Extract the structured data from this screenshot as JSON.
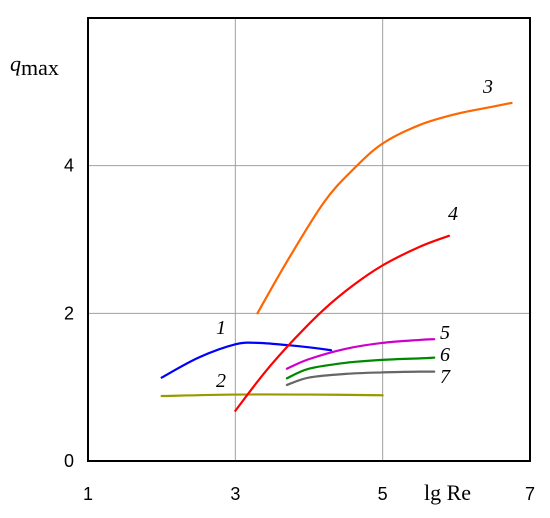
{
  "chart_data": {
    "type": "line",
    "xlabel": "lg Re",
    "ylabel": {
      "symbol": "q",
      "subscript": "max"
    },
    "xlim": [
      1,
      7
    ],
    "ylim": [
      0,
      6
    ],
    "x_ticks": [
      "1",
      "3",
      "5",
      "7"
    ],
    "y_ticks": [
      "0",
      "2",
      "4"
    ],
    "x_grid": [
      3,
      5
    ],
    "y_grid": [
      2,
      4
    ],
    "grid": true,
    "series": [
      {
        "name": "1",
        "color": "#0000ff",
        "x": [
          2.0,
          2.5,
          3.0,
          3.3,
          3.7,
          4.0,
          4.3
        ],
        "y": [
          1.13,
          1.4,
          1.58,
          1.6,
          1.57,
          1.54,
          1.5
        ]
      },
      {
        "name": "2",
        "color": "#999900",
        "x": [
          2.0,
          3.0,
          4.0,
          5.0
        ],
        "y": [
          0.88,
          0.9,
          0.9,
          0.89
        ]
      },
      {
        "name": "3",
        "color": "#ff6600",
        "x": [
          3.3,
          3.7,
          4.2,
          4.6,
          5.0,
          5.5,
          6.0,
          6.5,
          6.75
        ],
        "y": [
          2.0,
          2.7,
          3.5,
          3.95,
          4.3,
          4.55,
          4.7,
          4.8,
          4.85
        ]
      },
      {
        "name": "4",
        "color": "#ff0000",
        "x": [
          3.0,
          3.4,
          3.8,
          4.2,
          4.6,
          5.0,
          5.5,
          5.9
        ],
        "y": [
          0.68,
          1.2,
          1.65,
          2.05,
          2.38,
          2.65,
          2.9,
          3.05
        ]
      },
      {
        "name": "5",
        "color": "#cc00cc",
        "x": [
          3.7,
          4.0,
          4.5,
          5.0,
          5.5,
          5.7
        ],
        "y": [
          1.25,
          1.38,
          1.52,
          1.6,
          1.64,
          1.65
        ]
      },
      {
        "name": "6",
        "color": "#008800",
        "x": [
          3.7,
          4.0,
          4.5,
          5.0,
          5.5,
          5.7
        ],
        "y": [
          1.12,
          1.25,
          1.33,
          1.37,
          1.39,
          1.4
        ]
      },
      {
        "name": "7",
        "color": "#666666",
        "x": [
          3.7,
          4.0,
          4.5,
          5.0,
          5.5,
          5.7
        ],
        "y": [
          1.03,
          1.13,
          1.18,
          1.2,
          1.21,
          1.21
        ]
      }
    ]
  }
}
